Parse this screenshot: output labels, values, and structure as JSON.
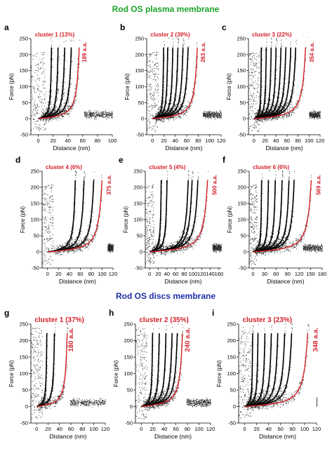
{
  "headings": {
    "section_1": "Rod OS plasma membrane",
    "section_2": "Rod OS discs membrane",
    "section_1_color": "#1aa329",
    "section_2_color": "#1f2fa8"
  },
  "colors": {
    "cluster_label": "#d4202a",
    "fit_curve": "#d4202a",
    "wlc_curves": "#000000",
    "scatter": "#000000"
  },
  "common": {
    "ylabel": "Force (pN)",
    "xlabel": "Distance (nm)"
  },
  "chart_data": [
    {
      "panel": "a",
      "type": "scatter",
      "title": "cluster 1 (13%)",
      "contour_label": "189 a.a.",
      "xlabel": "Distance (nm)",
      "ylabel": "Force (pN)",
      "xticks": [
        0,
        20,
        40,
        60,
        80,
        100
      ],
      "yticks": [
        -50,
        0,
        50,
        100,
        150,
        200,
        250
      ],
      "xlim": [
        -10,
        100
      ],
      "ylim": [
        -50,
        250
      ],
      "black_curve_contour_lengths": [
        20,
        30,
        40,
        50
      ],
      "red_curve_contour_length": 62,
      "detach_distance": 62,
      "baseline_end": 100
    },
    {
      "panel": "b",
      "type": "scatter",
      "title": "cluster 2 (39%)",
      "contour_label": "263 a.a.",
      "xlabel": "Distance (nm)",
      "ylabel": "Force (pN)",
      "xticks": [
        0,
        20,
        40,
        60,
        80,
        100,
        120
      ],
      "yticks": [
        -50,
        0,
        50,
        100,
        150,
        200,
        250
      ],
      "xlim": [
        -10,
        120
      ],
      "ylim": [
        -50,
        250
      ],
      "black_curve_contour_lengths": [
        22,
        30,
        40,
        50,
        60,
        70
      ],
      "red_curve_contour_length": 88,
      "detach_distance": 88,
      "baseline_end": 120
    },
    {
      "panel": "c",
      "type": "scatter",
      "title": "cluster 3 (22%)",
      "contour_label": "354 a.a.",
      "xlabel": "Distance (nm)",
      "ylabel": "Force (pN)",
      "xticks": [
        0,
        20,
        40,
        60,
        80,
        100,
        120
      ],
      "yticks": [
        -50,
        0,
        50,
        100,
        150,
        200,
        250
      ],
      "xlim": [
        -10,
        120
      ],
      "ylim": [
        -50,
        250
      ],
      "black_curve_contour_lengths": [
        15,
        25,
        35,
        45,
        55,
        65,
        75,
        85
      ],
      "red_curve_contour_length": 105,
      "detach_distance": 100,
      "baseline_end": 120
    },
    {
      "panel": "d",
      "type": "scatter",
      "title": "cluster 4 (6%)",
      "contour_label": "375 a.a.",
      "xlabel": "Distance (nm)",
      "ylabel": "Force (pN)",
      "xticks": [
        0,
        20,
        40,
        60,
        80,
        100,
        120
      ],
      "yticks": [
        -50,
        0,
        50,
        100,
        150,
        200,
        250
      ],
      "xlim": [
        -10,
        120
      ],
      "ylim": [
        -50,
        250
      ],
      "black_curve_contour_lengths": [
        57,
        75,
        95
      ],
      "red_curve_contour_length": 112,
      "detach_distance": 110,
      "baseline_end": 120
    },
    {
      "panel": "e",
      "type": "scatter",
      "title": "cluster 5 (4%)",
      "contour_label": "500 a.a.",
      "xlabel": "Distance (nm)",
      "ylabel": "Force (pN)",
      "xticks": [
        0,
        20,
        40,
        60,
        80,
        100,
        120,
        140,
        160
      ],
      "yticks": [
        -50,
        0,
        50,
        100,
        150,
        200,
        250
      ],
      "xlim": [
        -10,
        165
      ],
      "ylim": [
        -50,
        250
      ],
      "black_curve_contour_lengths": [
        30,
        45,
        100,
        110,
        125
      ],
      "red_curve_contour_length": 150,
      "detach_distance": 145,
      "baseline_end": 165
    },
    {
      "panel": "f",
      "type": "scatter",
      "title": "cluster 6 (6%)",
      "contour_label": "569 a.a.",
      "xlabel": "Distance (nm)",
      "ylabel": "Force (pN)",
      "xticks": [
        0,
        30,
        60,
        90,
        120,
        150,
        180
      ],
      "yticks": [
        -50,
        0,
        50,
        100,
        150,
        200,
        250
      ],
      "xlim": [
        -10,
        180
      ],
      "ylim": [
        -50,
        250
      ],
      "black_curve_contour_lengths": [
        25,
        45,
        65,
        85,
        105,
        120
      ],
      "red_curve_contour_length": 170,
      "detach_distance": 130,
      "baseline_end": 180
    },
    {
      "panel": "g",
      "type": "scatter",
      "title": "cluster 1 (37%)",
      "contour_label": "180 a.a.",
      "xlabel": "Distance (nm)",
      "ylabel": "Force (pN)",
      "xticks": [
        0,
        20,
        40,
        60,
        80,
        100,
        120
      ],
      "yticks": [
        -50,
        0,
        50,
        100,
        150,
        200,
        250
      ],
      "xlim": [
        -10,
        120
      ],
      "ylim": [
        -50,
        250
      ],
      "black_curve_contour_lengths": [
        20,
        35
      ],
      "red_curve_contour_length": 60,
      "detach_distance": 58,
      "baseline_end": 120
    },
    {
      "panel": "h",
      "type": "scatter",
      "title": "cluster 2 (35%)",
      "contour_label": "240 a.a.",
      "xlabel": "Distance (nm)",
      "ylabel": "Force (pN)",
      "xticks": [
        0,
        20,
        40,
        60,
        80,
        100,
        120
      ],
      "yticks": [
        -50,
        0,
        50,
        100,
        150,
        200,
        250
      ],
      "xlim": [
        -10,
        120
      ],
      "ylim": [
        -50,
        250
      ],
      "black_curve_contour_lengths": [
        22,
        35,
        48,
        60,
        70
      ],
      "red_curve_contour_length": 80,
      "detach_distance": 78,
      "baseline_end": 120
    },
    {
      "panel": "i",
      "type": "scatter",
      "title": "cluster 3 (23%)",
      "contour_label": "348 a.a.",
      "xlabel": "Distance (nm)",
      "ylabel": "Force (pN)",
      "xticks": [
        0,
        20,
        40,
        60,
        80,
        100,
        120
      ],
      "yticks": [
        -50,
        0,
        50,
        100,
        150,
        200,
        250
      ],
      "xlim": [
        -10,
        120
      ],
      "ylim": [
        -50,
        250
      ],
      "black_curve_contour_lengths": [
        15,
        25,
        38,
        50,
        62,
        75,
        88
      ],
      "red_curve_contour_length": 118,
      "detach_distance": 120,
      "baseline_end": 120
    }
  ]
}
